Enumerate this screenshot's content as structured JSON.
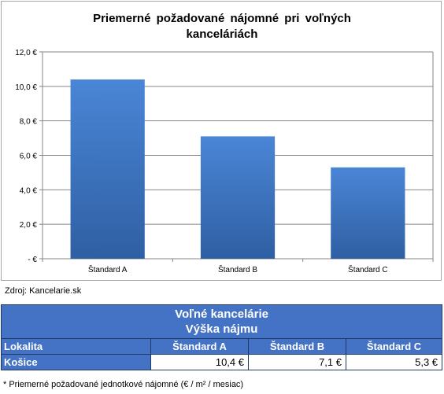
{
  "chart_data": {
    "type": "bar",
    "title": "Priemerné  požadované  nájomné  pri voľných kanceláriách",
    "title_lines": [
      "Priemerné  požadované  nájomné  pri voľných",
      "kanceláriách"
    ],
    "categories": [
      "Štandard A",
      "Štandard B",
      "Štandard C"
    ],
    "values": [
      10.4,
      7.1,
      5.3
    ],
    "ylim": [
      0,
      12
    ],
    "yticks": [
      0,
      2,
      4,
      6,
      8,
      10,
      12
    ],
    "ytick_labels": [
      "-  €",
      "2,0 €",
      "4,0 €",
      "6,0 €",
      "8,0 €",
      "10,0 €",
      "12,0 €"
    ],
    "grid": true,
    "legend": "none",
    "bar_color": "#3f78c8",
    "xlabel": "",
    "ylabel": ""
  },
  "source": "Zdroj: Kancelarie.sk",
  "table": {
    "header_line1": "Voľné kancelárie",
    "header_line2": "Výška nájmu",
    "columns": [
      "Lokalita",
      "Štandard A",
      "Štandard B",
      "Štandard C"
    ],
    "row": {
      "label": "Košice",
      "values": [
        "10,4 €",
        "7,1 €",
        "5,3 €"
      ]
    },
    "header_color": "#4472c4"
  },
  "footnote": "* Priemerné požadované jednotkové nájomné (€ / m² / mesiac)"
}
